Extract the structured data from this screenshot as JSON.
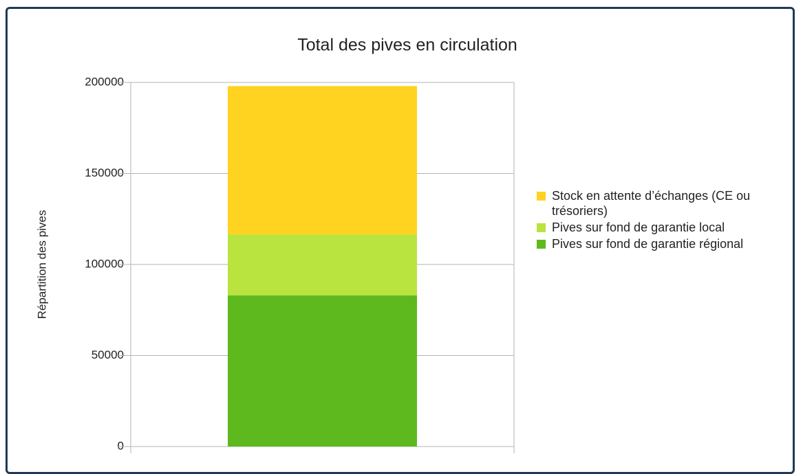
{
  "chart_data": {
    "type": "bar",
    "stacked": true,
    "title": "Total des pives en circulation",
    "y_label": "Répartition des pives",
    "categories": [
      null
    ],
    "series": [
      {
        "name": "Pives sur fond de garantie régional",
        "color": "#5eb91e",
        "values": [
          83000
        ]
      },
      {
        "name": "Pives sur fond de garantie local",
        "color": "#b9e33f",
        "values": [
          33500
        ]
      },
      {
        "name": "Stock en attente d’échanges (CE ou trésoriers)",
        "color": "#ffd320",
        "values": [
          81500
        ]
      }
    ],
    "ylim": [
      0,
      200000
    ],
    "yticks": [
      0,
      50000,
      100000,
      150000,
      200000
    ],
    "grid": true,
    "legend": "right"
  }
}
